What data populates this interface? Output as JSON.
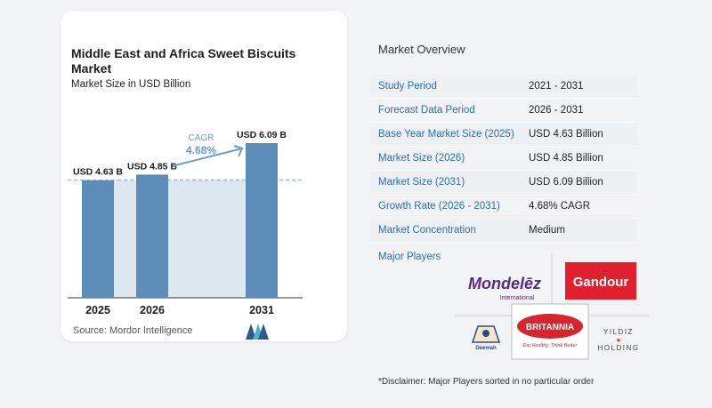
{
  "chart": {
    "title": "Middle East and Africa Sweet Biscuits Market",
    "subtitle": "Market Size in USD Billion",
    "cagr_label": "CAGR",
    "cagr_value": "4.68%",
    "source": "Source:  Mordor Intelligence"
  },
  "chart_data": {
    "type": "bar",
    "categories": [
      "2025",
      "2026",
      "2031"
    ],
    "values": [
      4.63,
      4.85,
      6.09
    ],
    "data_labels": [
      "USD 4.63 B",
      "USD 4.85 B",
      "USD 6.09 B"
    ],
    "title": "Middle East and Africa Sweet Biscuits Market",
    "subtitle": "Market Size in USD Billion",
    "annotation": "CAGR 4.68%",
    "reference_line_value": 4.63,
    "grid": false,
    "colors": {
      "bar": "#5b8db8",
      "area": "#dde8f0",
      "arrow": "#6a9fcb",
      "dashed": "#7aa6c8"
    }
  },
  "overview": {
    "title": "Market Overview",
    "rows": [
      {
        "label": "Study Period",
        "value": "2021 - 2031"
      },
      {
        "label": "Forecast Data Period",
        "value": "2026 - 2031"
      },
      {
        "label": "Base Year Market Size (2025)",
        "value": "USD 4.63 Billion"
      },
      {
        "label": "Market Size (2026)",
        "value": "USD 4.85 Billion"
      },
      {
        "label": "Market Size (2031)",
        "value": "USD 6.09 Billion"
      },
      {
        "label": "Growth Rate (2026 - 2031)",
        "value": "4.68% CAGR"
      },
      {
        "label": "Market Concentration",
        "value": "Medium"
      }
    ]
  },
  "players": {
    "title": "Major Players",
    "logos": {
      "mondelez": {
        "name": "Mondelēz",
        "sub": "International"
      },
      "gandour": {
        "name": "Gandour"
      },
      "britannia": {
        "name": "BRITANNIA",
        "tagline": "Eat Healthy, Think Better"
      },
      "deemah": {
        "name": "Deemah"
      },
      "yildiz": {
        "line1": "YILDIZ",
        "line2": "HOLDING"
      }
    }
  },
  "disclaimer": "*Disclaimer: Major Players sorted in no particular order"
}
